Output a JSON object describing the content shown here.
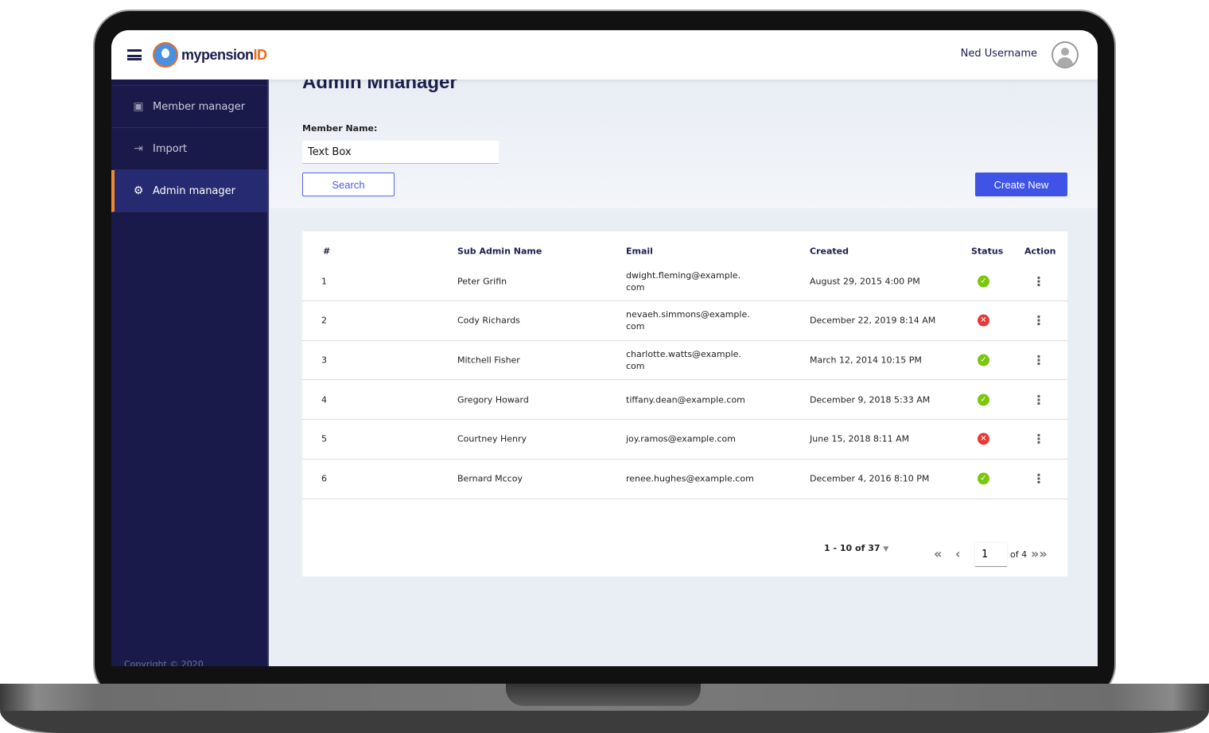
{
  "header": {
    "brand": "mypension",
    "brand_accent": "ID",
    "user_name": "Ned Username"
  },
  "sidebar": {
    "items": [
      {
        "label": "Member manager",
        "icon": "member-card-icon"
      },
      {
        "label": "Import",
        "icon": "import-icon"
      },
      {
        "label": "Admin manager",
        "icon": "gear-icon",
        "active": true
      }
    ],
    "copyright": "Copyright © 2020"
  },
  "main": {
    "title": "Admin Mnanager",
    "member_label": "Member Name:",
    "member_value": "Text Box",
    "search_label": "Search",
    "create_label": "Create New"
  },
  "table": {
    "headers": [
      "#",
      "Sub Admin Name",
      "Email",
      "Created",
      "Status",
      "Action"
    ],
    "rows": [
      {
        "n": "1",
        "name": "Peter Grifin",
        "email": "dwight.fleming@example.\ncom",
        "created": "August 29, 2015 4:00 PM",
        "status": "active"
      },
      {
        "n": "2",
        "name": "Cody Richards",
        "email": "nevaeh.simmons@example.\ncom",
        "created": "December 22, 2019 8:14 AM",
        "status": "inactive"
      },
      {
        "n": "3",
        "name": "Mitchell Fisher",
        "email": "charlotte.watts@example.\ncom",
        "created": "March 12, 2014 10:15 PM",
        "status": "active"
      },
      {
        "n": "4",
        "name": "Gregory Howard",
        "email": "tiffany.dean@example.com",
        "created": "December 9, 2018 5:33 AM",
        "status": "active"
      },
      {
        "n": "5",
        "name": "Courtney Henry",
        "email": "joy.ramos@example.com",
        "created": "June 15, 2018 8:11 AM",
        "status": "inactive"
      },
      {
        "n": "6",
        "name": "Bernard Mccoy",
        "email": "renee.hughes@example.com",
        "created": "December 4, 2016 8:10 PM",
        "status": "active"
      }
    ]
  },
  "pagination": {
    "range": "1 - 10 of 37",
    "page": "1",
    "of": "of 4"
  },
  "colors": {
    "active": "#7ac70c",
    "inactive": "#e53935",
    "accent": "#3f54e6",
    "sidebar": "#1a1a4a",
    "highlight": "#f28a2b"
  }
}
